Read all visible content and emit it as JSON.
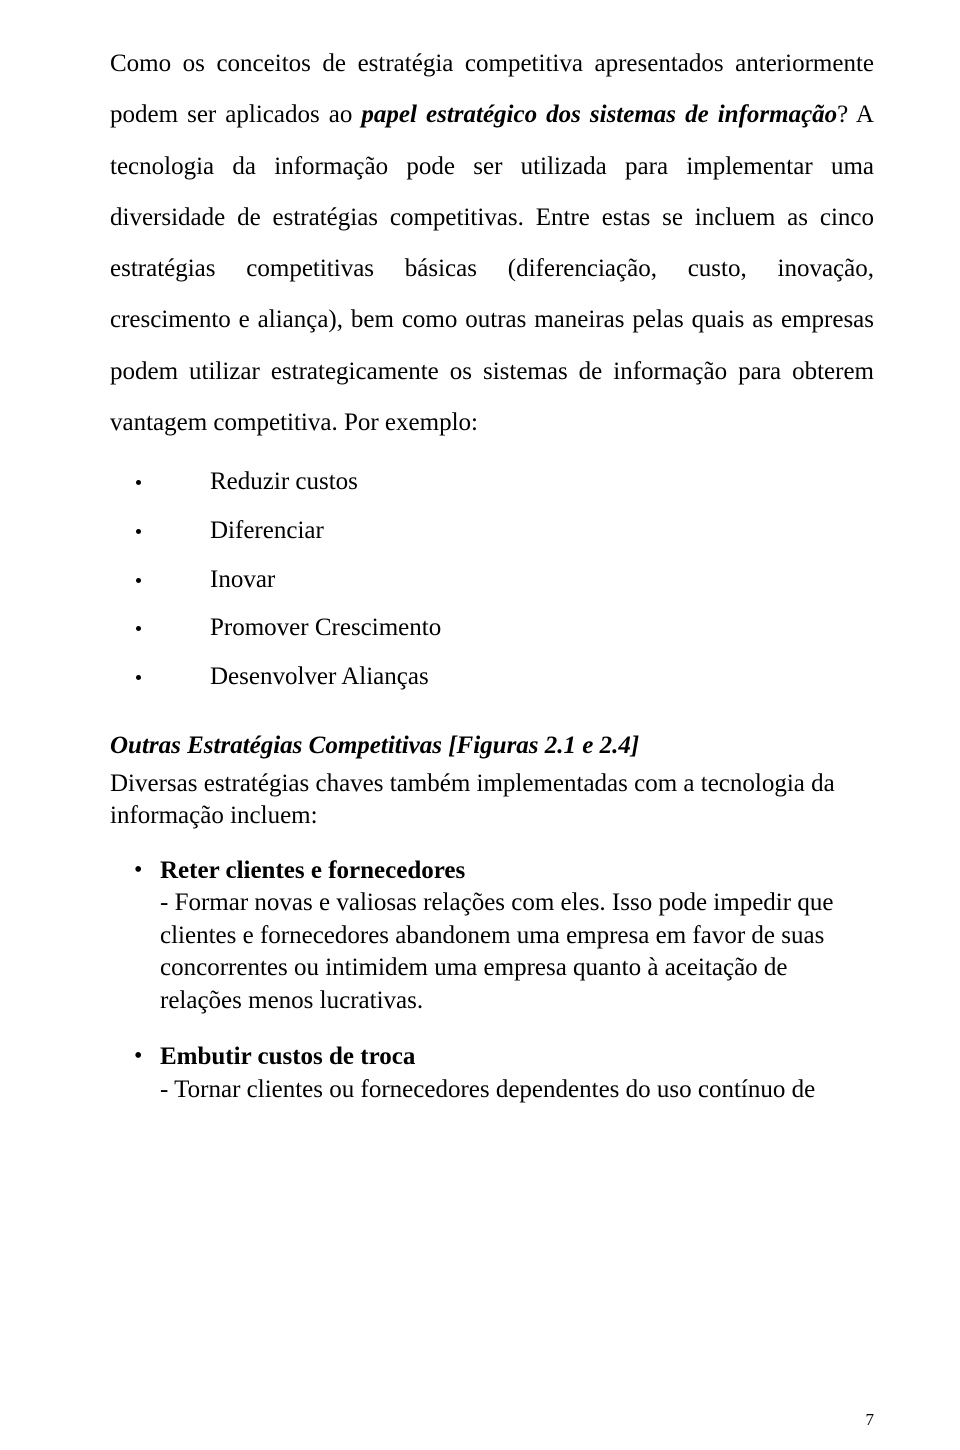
{
  "colors": {
    "background": "#ffffff",
    "text": "#000000"
  },
  "typography": {
    "font_family": "Times New Roman",
    "body_fontsize_pt": 18,
    "line_height_body": 2.05,
    "line_height_tight": 1.3
  },
  "paragraph1": {
    "run1": "Como os conceitos de estratégia competitiva apresentados anteriormente podem ser aplicados ao ",
    "run2_italic_bold": "papel estratégico dos sistemas de informação",
    "run3": "? A tecnologia da informação pode ser utilizada para implementar uma diversidade de estratégias competitivas. Entre estas se incluem as cinco estratégias competitivas básicas (diferenciação, custo, inovação, crescimento e aliança), bem como outras maneiras pelas quais as empresas podem utilizar estrategicamente os sistemas de informação para obterem vantagem competitiva. Por exemplo:"
  },
  "example_list": [
    "Reduzir custos",
    "Diferenciar",
    "Inovar",
    "Promover Crescimento",
    "Desenvolver Alianças"
  ],
  "subheading": "Outras Estratégias Competitivas [Figuras 2.1 e 2.4]",
  "intro_line": "Diversas estratégias chaves também implementadas com a tecnologia da informação incluem:",
  "strategy_bullets": [
    {
      "title": "Reter clientes e fornecedores",
      "body": "- Formar novas e valiosas relações com eles. Isso pode impedir que clientes e fornecedores abandonem uma empresa em favor de suas concorrentes ou intimidem uma empresa quanto à aceitação de relações menos lucrativas."
    },
    {
      "title": "Embutir custos de troca",
      "body": "- Tornar clientes ou fornecedores dependentes do uso contínuo de"
    }
  ],
  "page_number": "7"
}
